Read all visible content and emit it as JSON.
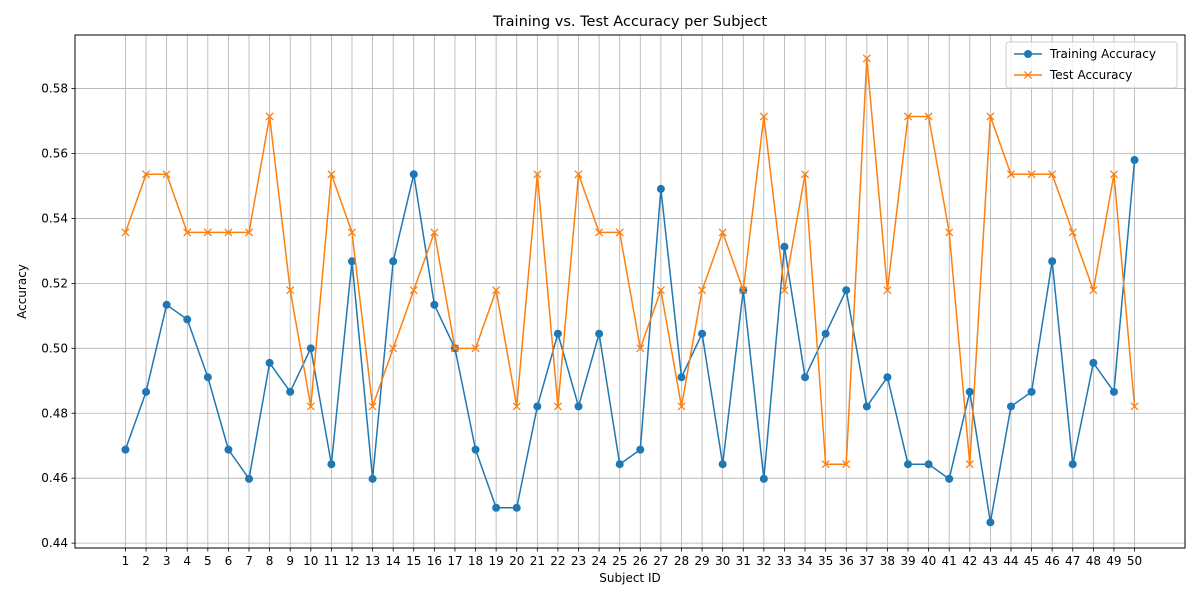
{
  "chart_data": {
    "type": "line",
    "title": "Training vs. Test Accuracy per Subject",
    "xlabel": "Subject ID",
    "ylabel": "Accuracy",
    "x": [
      1,
      2,
      3,
      4,
      5,
      6,
      7,
      8,
      9,
      10,
      11,
      12,
      13,
      14,
      15,
      16,
      17,
      18,
      19,
      20,
      21,
      22,
      23,
      24,
      25,
      26,
      27,
      28,
      29,
      30,
      31,
      32,
      33,
      34,
      35,
      36,
      37,
      38,
      39,
      40,
      41,
      42,
      43,
      44,
      45,
      46,
      47,
      48,
      49,
      50
    ],
    "ylim": [
      0.4385,
      0.5965
    ],
    "yticks": [
      0.44,
      0.46,
      0.48,
      0.5,
      0.52,
      0.54,
      0.56,
      0.58
    ],
    "ytick_labels": [
      "0.44",
      "0.46",
      "0.48",
      "0.50",
      "0.52",
      "0.54",
      "0.56",
      "0.58"
    ],
    "grid": true,
    "legend_position": "top-right",
    "series": [
      {
        "name": "Training Accuracy",
        "color": "#1f77b4",
        "marker": "circle",
        "values": [
          0.4688,
          0.4866,
          0.5134,
          0.5089,
          0.4911,
          0.4688,
          0.4598,
          0.4955,
          0.4866,
          0.5,
          0.4643,
          0.5268,
          0.4598,
          0.5268,
          0.5536,
          0.5134,
          0.5,
          0.4688,
          0.4509,
          0.4509,
          0.4821,
          0.5045,
          0.4821,
          0.5045,
          0.4643,
          0.4688,
          0.5491,
          0.4911,
          0.5045,
          0.4643,
          0.5179,
          0.4598,
          0.5313,
          0.4911,
          0.5045,
          0.5179,
          0.4821,
          0.4911,
          0.4643,
          0.4643,
          0.4598,
          0.4866,
          0.4464,
          0.4821,
          0.4866,
          0.5268,
          0.4643,
          0.4955,
          0.4866,
          0.558
        ]
      },
      {
        "name": "Test Accuracy",
        "color": "#ff7f0e",
        "marker": "x",
        "values": [
          0.5357,
          0.5536,
          0.5536,
          0.5357,
          0.5357,
          0.5357,
          0.5357,
          0.5714,
          0.5179,
          0.4821,
          0.5536,
          0.5357,
          0.4821,
          0.5,
          0.5179,
          0.5357,
          0.5,
          0.5,
          0.5179,
          0.4821,
          0.5536,
          0.4821,
          0.5536,
          0.5357,
          0.5357,
          0.5,
          0.5179,
          0.4821,
          0.5179,
          0.5357,
          0.5179,
          0.5714,
          0.5179,
          0.5536,
          0.4643,
          0.4643,
          0.5893,
          0.5179,
          0.5714,
          0.5714,
          0.5357,
          0.4643,
          0.5714,
          0.5536,
          0.5536,
          0.5536,
          0.5357,
          0.5179,
          0.5536,
          0.4821
        ]
      }
    ]
  }
}
